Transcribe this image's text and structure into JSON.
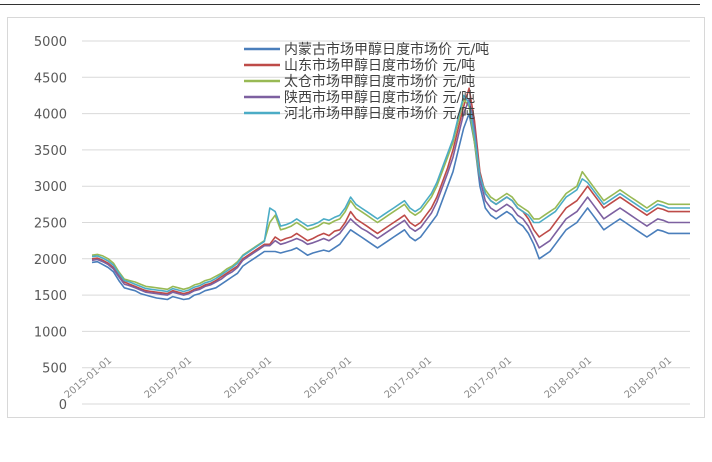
{
  "chart_data": {
    "type": "line",
    "title": "",
    "xlabel": "",
    "ylabel": "",
    "ylim": [
      0,
      5000
    ],
    "yticks": [
      0,
      500,
      1000,
      1500,
      2000,
      2500,
      3000,
      3500,
      4000,
      4500,
      5000
    ],
    "x_tick_labels": [
      "2015-01-01",
      "2015-07-01",
      "2016-01-01",
      "2016-07-01",
      "2017-01-01",
      "2017-07-01",
      "2018-01-01",
      "2018-07-01"
    ],
    "grid": true,
    "legend_placement": "top-center",
    "x_index": [
      0,
      8,
      16,
      24,
      32,
      40,
      48,
      56,
      64,
      72,
      80,
      88,
      96,
      104,
      112,
      120,
      128,
      136,
      144,
      152,
      160,
      168,
      176,
      184,
      192,
      200,
      208,
      216,
      224,
      232,
      240,
      248,
      256,
      264,
      272,
      280,
      288,
      296,
      304,
      312,
      320,
      328,
      336,
      344,
      352,
      360,
      368,
      376,
      384,
      392,
      400,
      408,
      416,
      424,
      432,
      440,
      448,
      456,
      464,
      472,
      480,
      488,
      496,
      504,
      512,
      520,
      528,
      536,
      544,
      552,
      560,
      568,
      576,
      584,
      592,
      600,
      608,
      616,
      624,
      632,
      640,
      648,
      656,
      664,
      672,
      680,
      688,
      696,
      704,
      712,
      720,
      728,
      736,
      744,
      752,
      760,
      768,
      776,
      784,
      792,
      800,
      808,
      816,
      824,
      832,
      840,
      848,
      856,
      864,
      872,
      880,
      888
    ],
    "series": [
      {
        "name": "内蒙古市场甲醇日度市场价 元/吨",
        "color": "#4a7ebb",
        "values": [
          1950,
          1960,
          1920,
          1880,
          1820,
          1700,
          1600,
          1580,
          1560,
          1520,
          1500,
          1480,
          1460,
          1450,
          1440,
          1480,
          1460,
          1440,
          1450,
          1500,
          1520,
          1560,
          1580,
          1600,
          1650,
          1700,
          1750,
          1800,
          1900,
          1950,
          2000,
          2050,
          2100,
          2100,
          2100,
          2080,
          2100,
          2120,
          2150,
          2100,
          2050,
          2080,
          2100,
          2120,
          2100,
          2150,
          2200,
          2300,
          2400,
          2350,
          2300,
          2250,
          2200,
          2150,
          2200,
          2250,
          2300,
          2350,
          2400,
          2300,
          2250,
          2300,
          2400,
          2500,
          2600,
          2800,
          3000,
          3200,
          3500,
          3800,
          4000,
          3600,
          3000,
          2700,
          2600,
          2550,
          2600,
          2650,
          2600,
          2500,
          2450,
          2350,
          2200,
          2000,
          2050,
          2100,
          2200,
          2300,
          2400,
          2450,
          2500,
          2600,
          2700,
          2600,
          2500,
          2400,
          2450,
          2500,
          2550,
          2500,
          2450,
          2400,
          2350,
          2300,
          2350,
          2400,
          2380,
          2350,
          2350,
          2350,
          2350,
          2350
        ]
      },
      {
        "name": "山东市场甲醇日度市场价 元/吨",
        "color": "#be4b48",
        "values": [
          2000,
          2010,
          1980,
          1940,
          1880,
          1770,
          1680,
          1650,
          1620,
          1590,
          1560,
          1550,
          1540,
          1530,
          1520,
          1560,
          1540,
          1520,
          1540,
          1580,
          1600,
          1640,
          1660,
          1700,
          1750,
          1800,
          1850,
          1900,
          2000,
          2050,
          2100,
          2150,
          2200,
          2200,
          2300,
          2250,
          2280,
          2300,
          2350,
          2300,
          2250,
          2280,
          2320,
          2350,
          2320,
          2380,
          2400,
          2500,
          2650,
          2550,
          2500,
          2450,
          2400,
          2350,
          2400,
          2450,
          2500,
          2550,
          2600,
          2500,
          2450,
          2500,
          2600,
          2700,
          2850,
          3050,
          3250,
          3500,
          3800,
          4100,
          4350,
          3900,
          3200,
          2900,
          2800,
          2750,
          2800,
          2850,
          2800,
          2700,
          2650,
          2550,
          2400,
          2300,
          2350,
          2400,
          2500,
          2600,
          2700,
          2750,
          2800,
          2900,
          3000,
          2900,
          2800,
          2700,
          2750,
          2800,
          2850,
          2800,
          2750,
          2700,
          2650,
          2600,
          2650,
          2700,
          2680,
          2650,
          2650,
          2650,
          2650,
          2650
        ]
      },
      {
        "name": "太仓市场甲醇日度市场价 元/吨",
        "color": "#98b954",
        "values": [
          2050,
          2060,
          2040,
          2000,
          1940,
          1820,
          1720,
          1700,
          1680,
          1650,
          1620,
          1610,
          1600,
          1590,
          1580,
          1620,
          1600,
          1580,
          1600,
          1640,
          1660,
          1700,
          1720,
          1760,
          1800,
          1860,
          1900,
          1960,
          2050,
          2100,
          2150,
          2200,
          2250,
          2500,
          2600,
          2400,
          2420,
          2450,
          2500,
          2450,
          2400,
          2420,
          2450,
          2500,
          2480,
          2520,
          2550,
          2650,
          2800,
          2700,
          2650,
          2600,
          2550,
          2500,
          2550,
          2600,
          2650,
          2700,
          2750,
          2650,
          2600,
          2650,
          2750,
          2850,
          3000,
          3200,
          3400,
          3600,
          3900,
          4200,
          4100,
          3600,
          3100,
          2950,
          2850,
          2800,
          2850,
          2900,
          2850,
          2750,
          2700,
          2650,
          2550,
          2550,
          2600,
          2650,
          2700,
          2800,
          2900,
          2950,
          3000,
          3200,
          3100,
          3000,
          2900,
          2800,
          2850,
          2900,
          2950,
          2900,
          2850,
          2800,
          2750,
          2700,
          2750,
          2800,
          2780,
          2750,
          2750,
          2750,
          2750,
          2750
        ]
      },
      {
        "name": "陕西市场甲醇日度市场价 元/吨",
        "color": "#7d60a0",
        "values": [
          1980,
          1990,
          1960,
          1920,
          1860,
          1750,
          1650,
          1630,
          1600,
          1570,
          1540,
          1530,
          1520,
          1510,
          1500,
          1540,
          1520,
          1500,
          1520,
          1560,
          1580,
          1620,
          1640,
          1680,
          1720,
          1780,
          1820,
          1880,
          1980,
          2030,
          2080,
          2130,
          2180,
          2180,
          2250,
          2200,
          2220,
          2250,
          2280,
          2250,
          2200,
          2220,
          2250,
          2280,
          2250,
          2300,
          2350,
          2450,
          2550,
          2480,
          2420,
          2380,
          2330,
          2280,
          2330,
          2380,
          2430,
          2480,
          2530,
          2430,
          2380,
          2430,
          2530,
          2630,
          2780,
          2980,
          3180,
          3400,
          3700,
          4000,
          4200,
          3800,
          3100,
          2800,
          2700,
          2650,
          2700,
          2750,
          2700,
          2600,
          2550,
          2450,
          2300,
          2150,
          2200,
          2250,
          2350,
          2450,
          2550,
          2600,
          2650,
          2750,
          2850,
          2750,
          2650,
          2550,
          2600,
          2650,
          2700,
          2650,
          2600,
          2550,
          2500,
          2450,
          2500,
          2550,
          2530,
          2500,
          2500,
          2500,
          2500,
          2500
        ]
      },
      {
        "name": "河北市场甲醇日度市场价 元/吨",
        "color": "#4bacc6",
        "values": [
          2030,
          2040,
          2010,
          1970,
          1910,
          1800,
          1700,
          1680,
          1650,
          1620,
          1590,
          1580,
          1570,
          1560,
          1550,
          1590,
          1570,
          1550,
          1570,
          1610,
          1630,
          1670,
          1690,
          1730,
          1780,
          1830,
          1880,
          1940,
          2040,
          2090,
          2140,
          2190,
          2240,
          2700,
          2650,
          2450,
          2470,
          2500,
          2550,
          2500,
          2450,
          2470,
          2500,
          2550,
          2530,
          2570,
          2600,
          2700,
          2850,
          2750,
          2700,
          2650,
          2600,
          2550,
          2600,
          2650,
          2700,
          2750,
          2800,
          2700,
          2650,
          2700,
          2800,
          2900,
          3050,
          3250,
          3450,
          3650,
          3950,
          4250,
          4150,
          3700,
          3150,
          2900,
          2800,
          2750,
          2800,
          2850,
          2800,
          2700,
          2650,
          2600,
          2500,
          2500,
          2550,
          2600,
          2650,
          2750,
          2850,
          2900,
          2950,
          3100,
          3050,
          2950,
          2850,
          2750,
          2800,
          2850,
          2900,
          2850,
          2800,
          2750,
          2700,
          2650,
          2700,
          2750,
          2730,
          2700,
          2700,
          2700,
          2700,
          2700
        ]
      }
    ]
  }
}
